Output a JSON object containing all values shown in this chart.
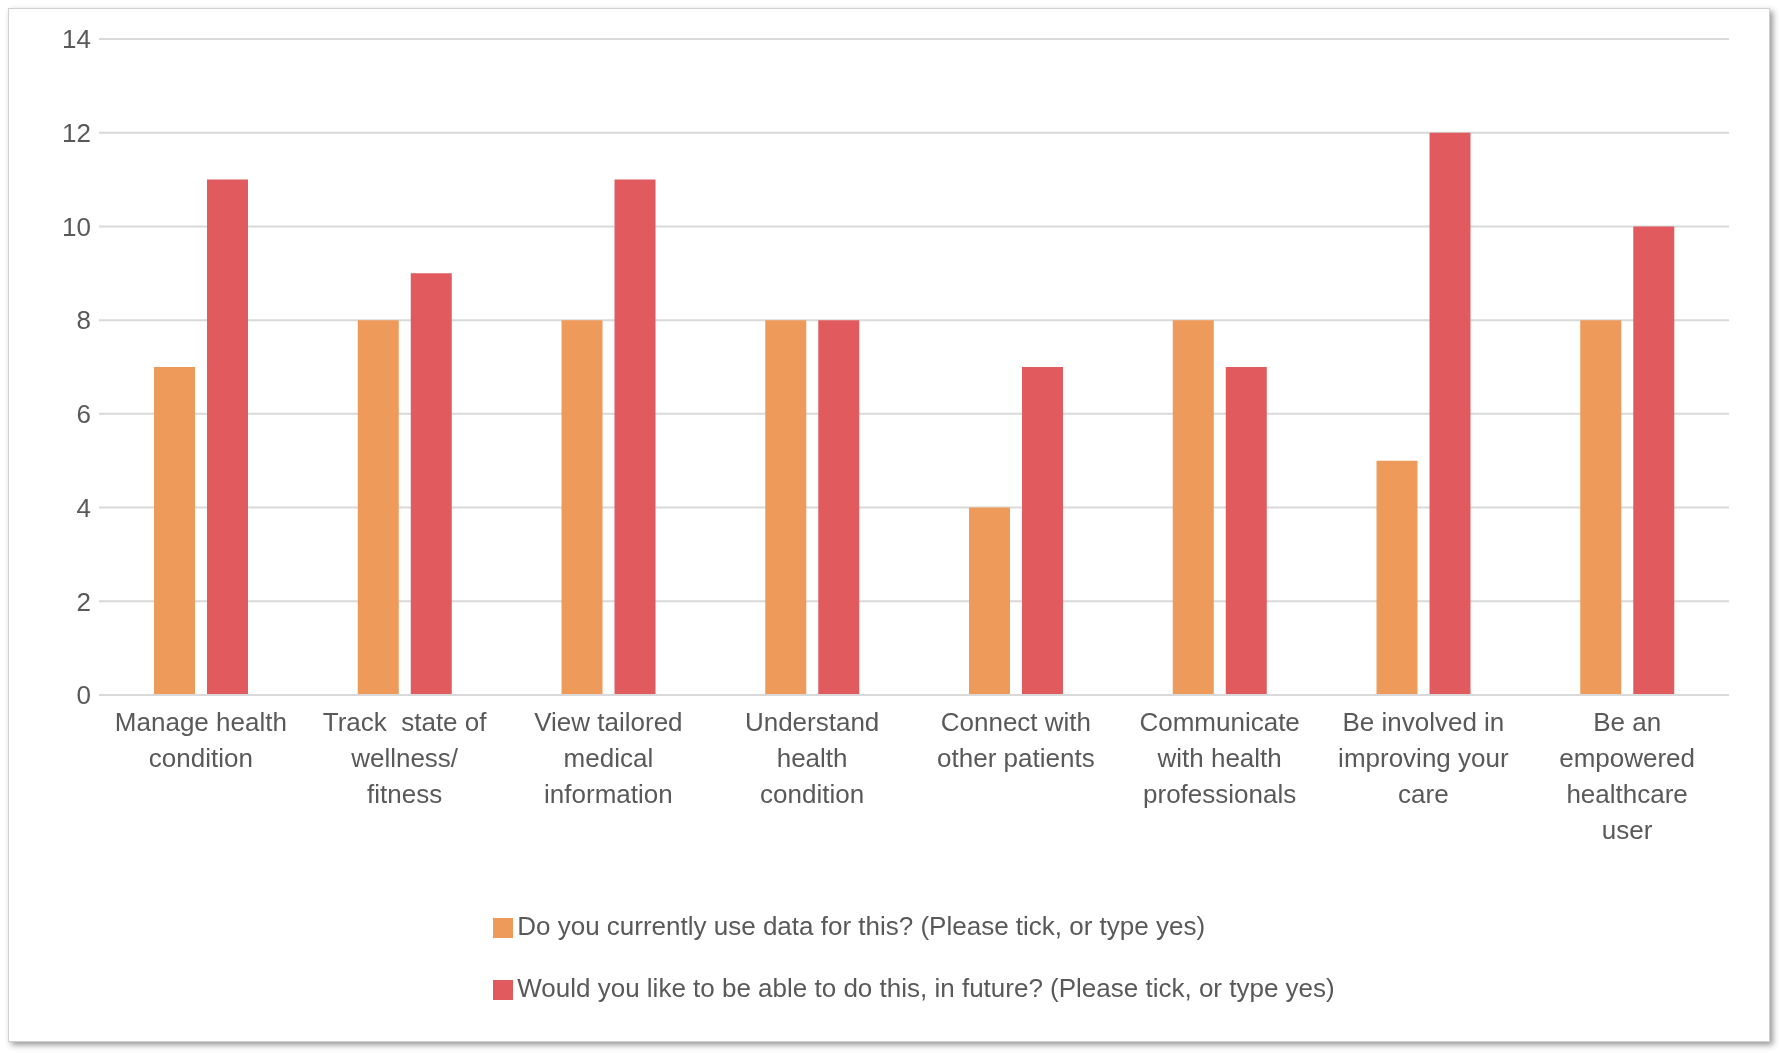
{
  "chart_data": {
    "type": "bar",
    "categories": [
      "Manage health condition",
      "Track  state of wellness/ fitness",
      "View tailored medical information",
      "Understand health condition",
      "Connect with other patients",
      "Communicate with health professionals",
      "Be involved in improving your care",
      "Be an empowered healthcare user"
    ],
    "series": [
      {
        "name": "Do you currently use data for this? (Please tick, or type yes)",
        "color": "#ed9a5a",
        "values": [
          7,
          8,
          8,
          8,
          4,
          8,
          5,
          8
        ]
      },
      {
        "name": "Would you like to be able to do this, in future? (Please tick, or type yes)",
        "color": "#e05a5e",
        "values": [
          11,
          9,
          11,
          8,
          7,
          7,
          12,
          10
        ]
      }
    ],
    "ylim": [
      0,
      14
    ],
    "yticks": [
      0,
      2,
      4,
      6,
      8,
      10,
      12,
      14
    ],
    "grid": "y",
    "legend": "bottom"
  }
}
